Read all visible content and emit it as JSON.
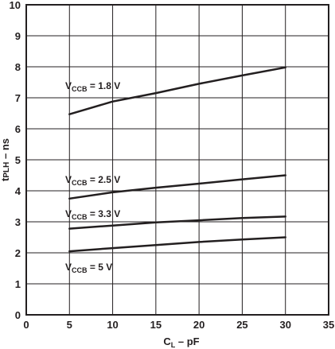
{
  "chart_data": {
    "type": "line",
    "title": "",
    "xlabel": {
      "main": "C",
      "sub": "L",
      "rest": " – pF"
    },
    "ylabel": {
      "main": "t",
      "sub": "PLH",
      "rest": " – ns"
    },
    "xlim": [
      0,
      35
    ],
    "ylim": [
      0,
      10
    ],
    "x_ticks": [
      "0",
      "5",
      "10",
      "15",
      "20",
      "25",
      "30",
      "35"
    ],
    "y_ticks": [
      "0",
      "1",
      "2",
      "3",
      "4",
      "5",
      "6",
      "7",
      "8",
      "9",
      "10"
    ],
    "grid": true,
    "series": [
      {
        "label": {
          "main": "V",
          "sub": "CCB",
          "rest": " = 1.8 V"
        },
        "x": [
          5,
          10,
          15,
          20,
          25,
          30
        ],
        "y": [
          6.47,
          6.88,
          7.15,
          7.45,
          7.72,
          7.98
        ]
      },
      {
        "label": {
          "main": "V",
          "sub": "CCB",
          "rest": " = 2.5 V"
        },
        "x": [
          5,
          10,
          15,
          20,
          25,
          30
        ],
        "y": [
          3.75,
          3.95,
          4.1,
          4.23,
          4.37,
          4.5
        ]
      },
      {
        "label": {
          "main": "V",
          "sub": "CCB",
          "rest": " = 3.3 V"
        },
        "x": [
          5,
          10,
          15,
          20,
          25,
          30
        ],
        "y": [
          2.78,
          2.88,
          2.98,
          3.05,
          3.12,
          3.17
        ]
      },
      {
        "label": {
          "main": "V",
          "sub": "CCB",
          "rest": " = 5 V"
        },
        "x": [
          5,
          10,
          15,
          20,
          25,
          30
        ],
        "y": [
          2.05,
          2.15,
          2.25,
          2.35,
          2.43,
          2.5
        ]
      }
    ],
    "colors": {
      "line": "#231f20",
      "grid": "#231f20",
      "frame": "#231f20"
    }
  }
}
